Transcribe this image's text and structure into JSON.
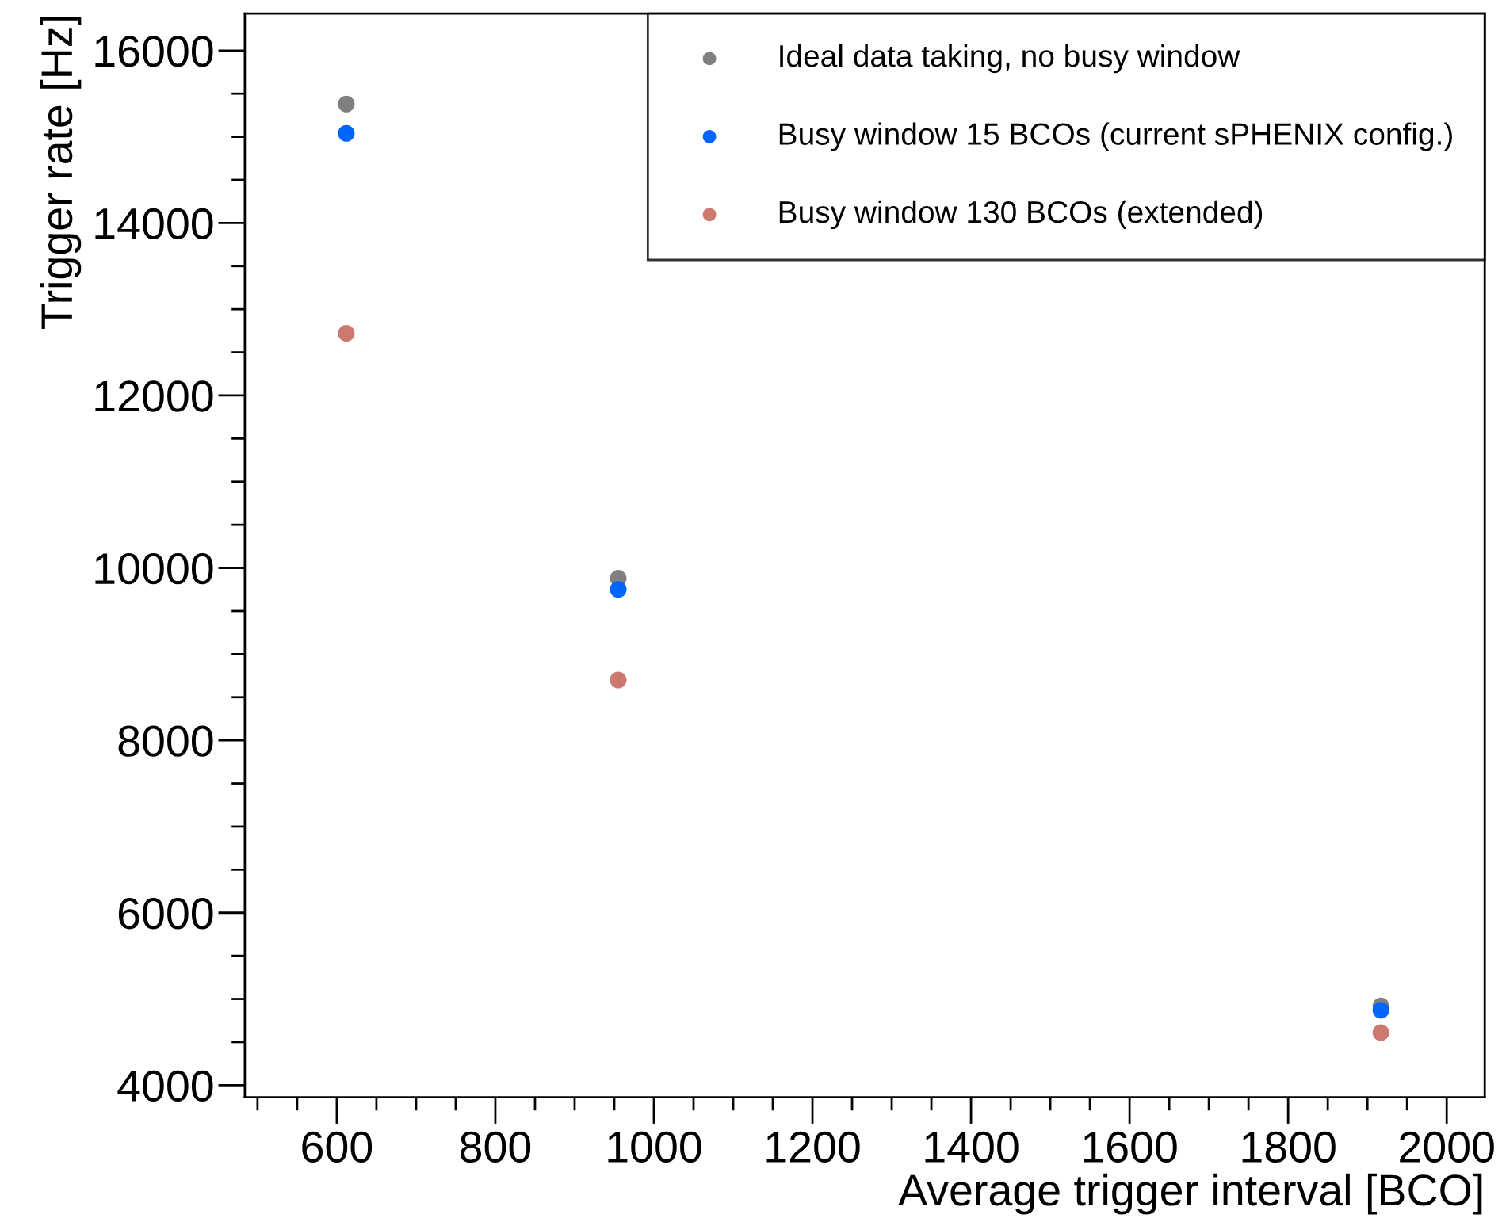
{
  "chart_data": {
    "type": "scatter",
    "xlabel": "Average trigger interval [BCO]",
    "ylabel": "Trigger rate [Hz]",
    "x": [
      612,
      955,
      1917
    ],
    "series": [
      {
        "name": "Ideal data taking, no busy window",
        "color": "#808080",
        "values": [
          15380,
          9880,
          4920
        ]
      },
      {
        "name": "Busy window 15 BCOs (current sPHENIX config.)",
        "color": "#0066ff",
        "values": [
          15040,
          9750,
          4870
        ]
      },
      {
        "name": "Busy window 130 BCOs (extended)",
        "color": "#cc7a70",
        "values": [
          12720,
          8700,
          4610
        ]
      }
    ],
    "xlim": [
      484,
      2048
    ],
    "ylim": [
      3860,
      16430
    ],
    "xticks": [
      600,
      800,
      1000,
      1200,
      1400,
      1600,
      1800,
      2000
    ],
    "yticks": [
      4000,
      6000,
      8000,
      10000,
      12000,
      14000,
      16000
    ],
    "marker": "circle",
    "grid": false,
    "legend": "top right"
  }
}
